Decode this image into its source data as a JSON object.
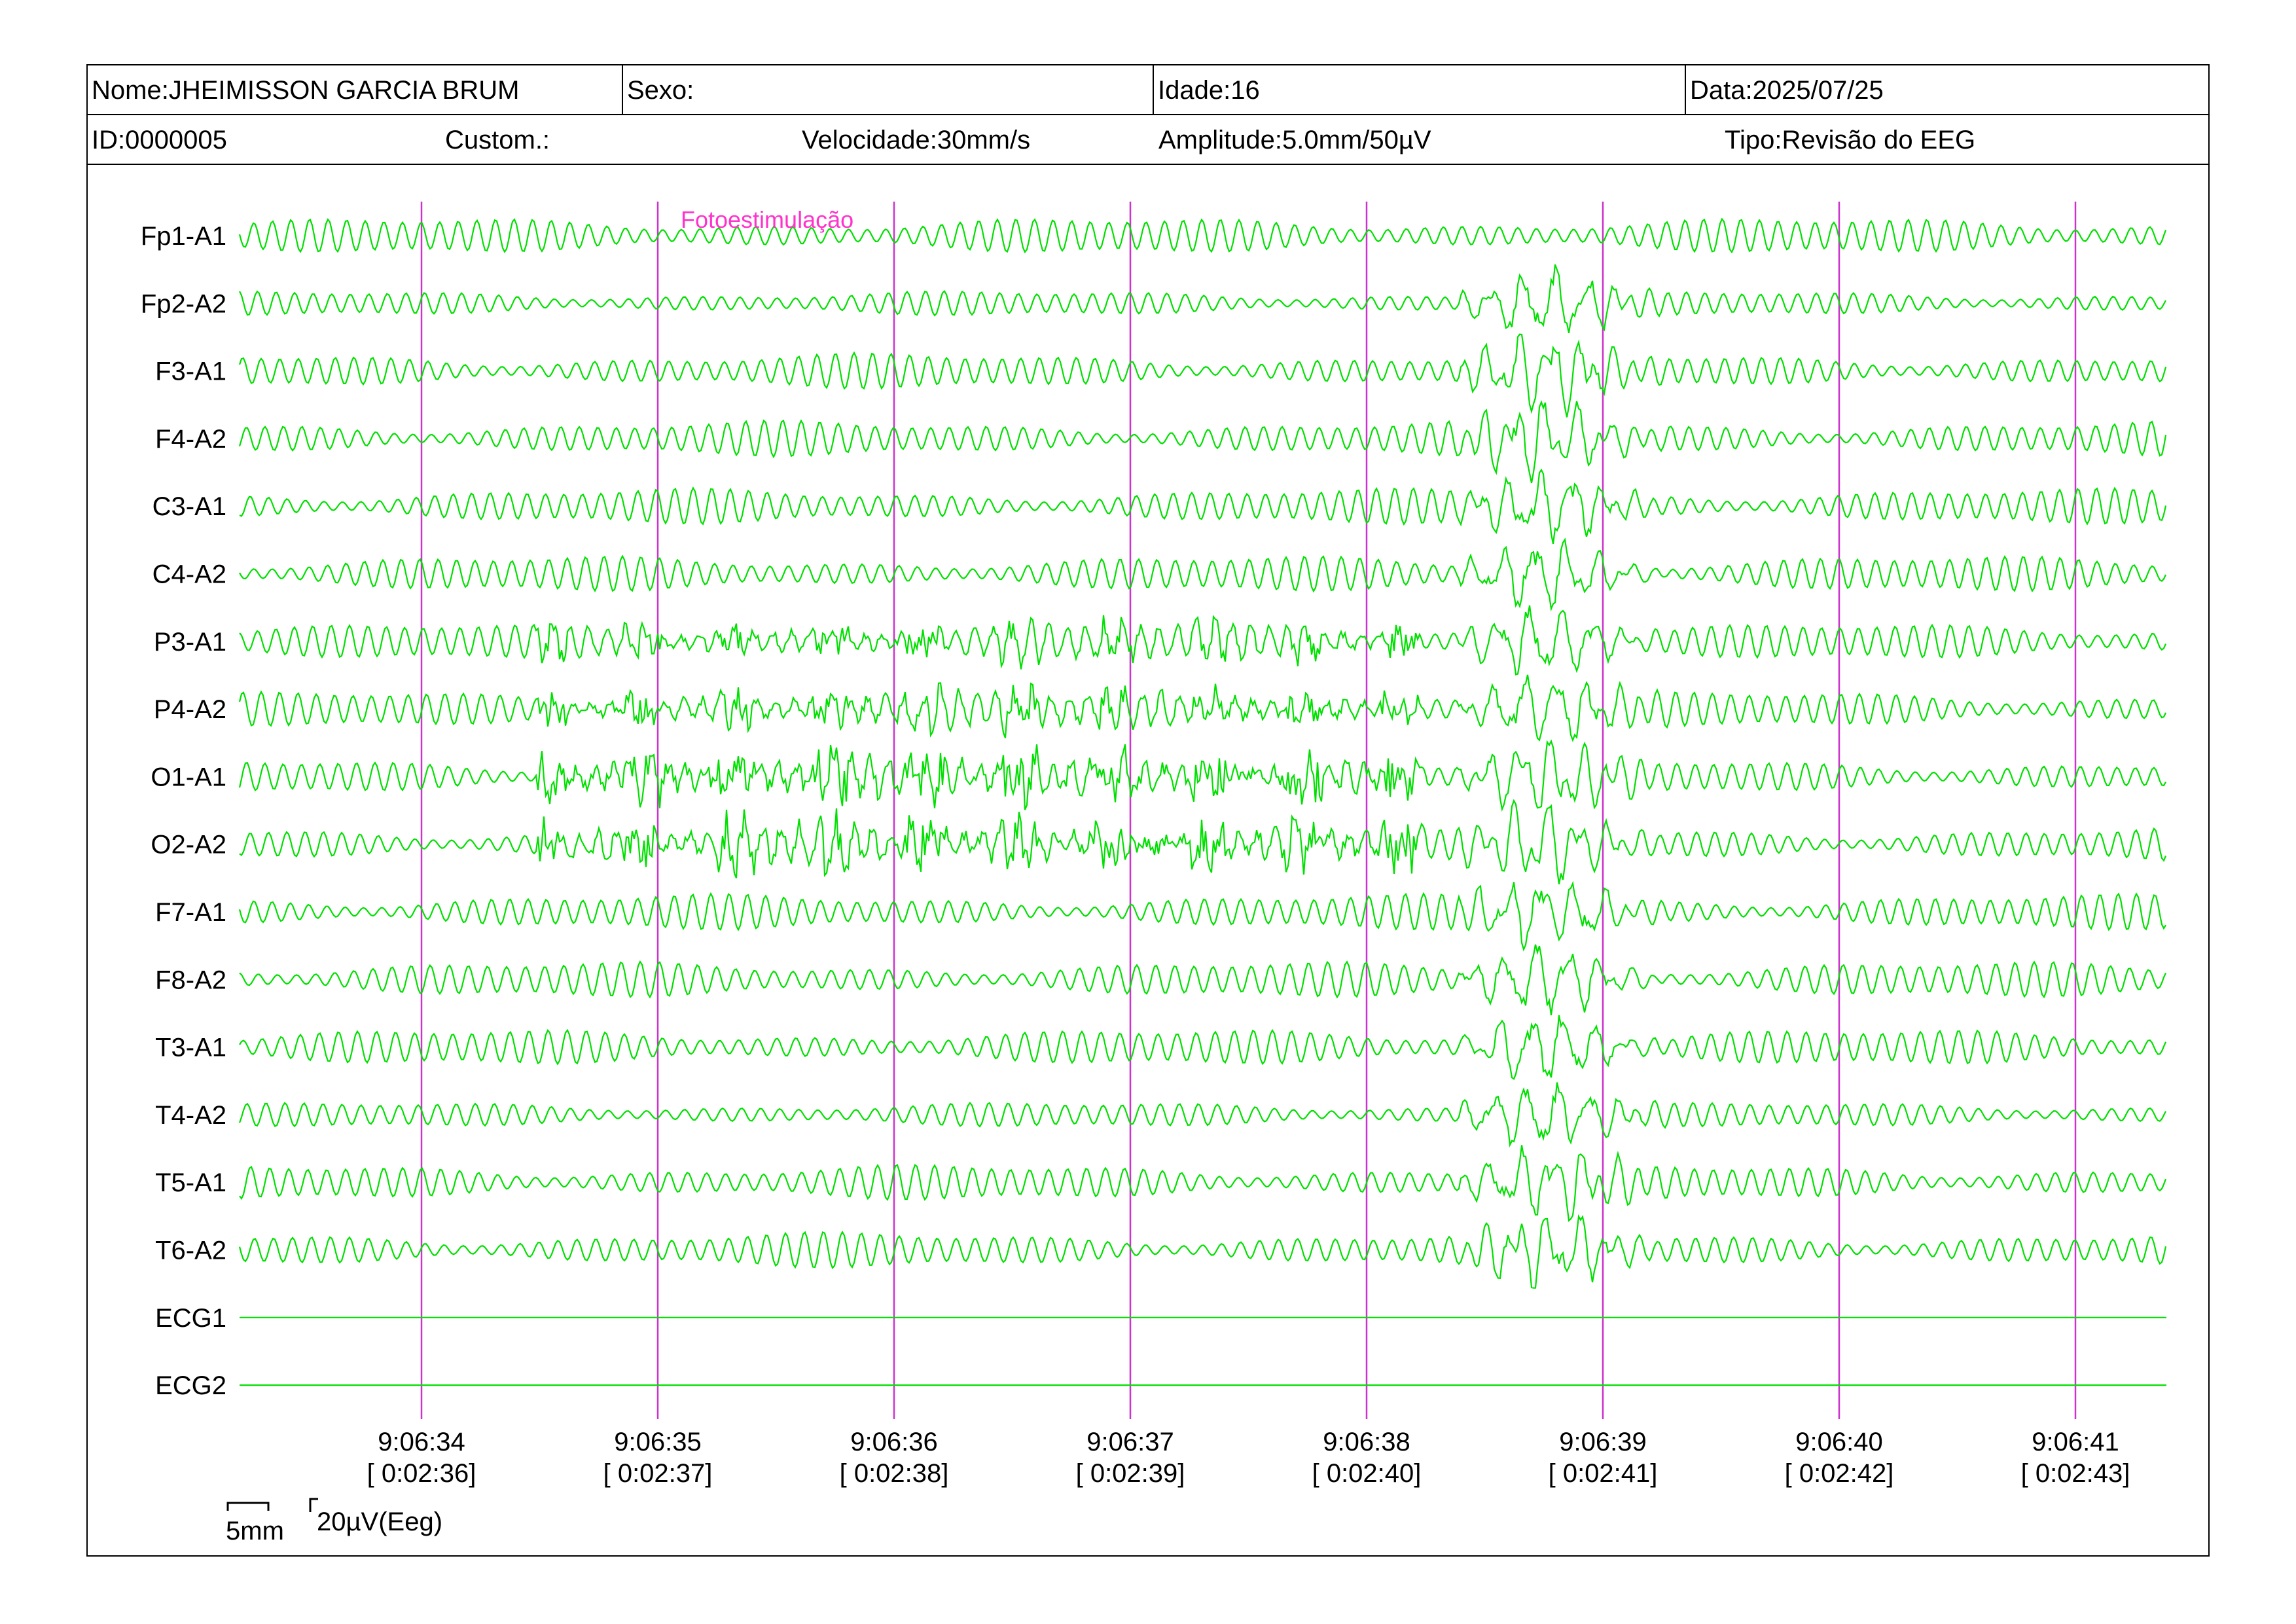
{
  "header": {
    "name": "Nome:JHEIMISSON GARCIA BRUM",
    "sex": "Sexo:",
    "age": "Idade:16",
    "date": "Data:2025/07/25",
    "id": "ID:0000005",
    "custom": "Custom.:",
    "speed": "Velocidade:30mm/s",
    "amplitude": "Amplitude:5.0mm/50µV",
    "type": "Tipo:Revisão do EEG"
  },
  "event": {
    "label": "Fotoestimulação"
  },
  "channels": [
    "Fp1-A1",
    "Fp2-A2",
    "F3-A1",
    "F4-A2",
    "C3-A1",
    "C4-A2",
    "P3-A1",
    "P4-A2",
    "O1-A1",
    "O2-A2",
    "F7-A1",
    "F8-A2",
    "T3-A1",
    "T4-A2",
    "T5-A1",
    "T6-A2",
    "ECG1",
    "ECG2"
  ],
  "time_marks": [
    {
      "clock": "9:06:34",
      "elapsed": "[ 0:02:36]"
    },
    {
      "clock": "9:06:35",
      "elapsed": "[ 0:02:37]"
    },
    {
      "clock": "9:06:36",
      "elapsed": "[ 0:02:38]"
    },
    {
      "clock": "9:06:37",
      "elapsed": "[ 0:02:39]"
    },
    {
      "clock": "9:06:38",
      "elapsed": "[ 0:02:40]"
    },
    {
      "clock": "9:06:39",
      "elapsed": "[ 0:02:41]"
    },
    {
      "clock": "9:06:40",
      "elapsed": "[ 0:02:42]"
    },
    {
      "clock": "9:06:41",
      "elapsed": "[ 0:02:43]"
    }
  ],
  "scale": {
    "time": "5mm",
    "amplitude": "20µV(Eeg)"
  },
  "colors": {
    "trace": "#00e000",
    "marker": "#cc33cc",
    "event": "#ff33cc"
  }
}
